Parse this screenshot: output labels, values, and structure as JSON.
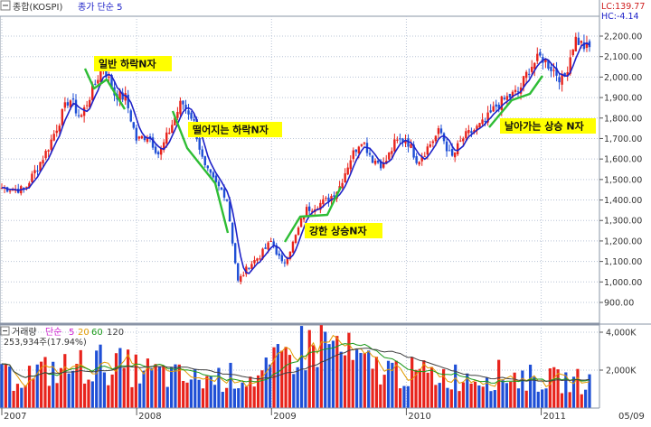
{
  "header": {
    "title": "종합(KOSPI)",
    "indicator": "종가 단순 5",
    "lc": "LC:139.77",
    "hc": "HC:-4.14"
  },
  "volume_header": {
    "title": "거래량",
    "ma_label": "단순",
    "ma_periods": [
      "5",
      "20",
      "60",
      "120"
    ],
    "current": "253,934주(17.94%)"
  },
  "colors": {
    "up": "#e8231c",
    "down": "#1f4fd6",
    "ma_line": "#1e22c8",
    "trend": "#2ebd35",
    "note_bg": "#ffff00",
    "grid": "#b9c4d6",
    "ma5": "#d020d0",
    "ma20": "#e29b00",
    "ma60": "#1a9a1a",
    "ma120": "#404040"
  },
  "annotations": [
    {
      "text": "일반 하락N자"
    },
    {
      "text": "떨어지는 하락N자"
    },
    {
      "text": "강한 상승N자"
    },
    {
      "text": "날아가는 상승 N자"
    }
  ],
  "chart_data": [
    {
      "type": "candlestick",
      "series": [
        {
          "name": "종가 단순 5"
        }
      ],
      "y_ticks": [
        "900.00",
        "1,000.00",
        "1,100.00",
        "1,200.00",
        "1,300.00",
        "1,400.00",
        "1,500.00",
        "1,600.00",
        "1,700.00",
        "1,800.00",
        "1,900.00",
        "2,000.00",
        "2,100.00",
        "2,200.00"
      ],
      "ylim": [
        860,
        2260
      ],
      "x_ticks": [
        "2007",
        "2008",
        "2009",
        "2010",
        "2011",
        "05/09"
      ],
      "grid": true,
      "close_path": [
        [
          "2007-01",
          1460
        ],
        [
          "2007-03",
          1450
        ],
        [
          "2007-05",
          1640
        ],
        [
          "2007-07",
          1900
        ],
        [
          "2007-08",
          1800
        ],
        [
          "2007-10",
          2060
        ],
        [
          "2007-11",
          1920
        ],
        [
          "2007-12",
          1900
        ],
        [
          "2008-01",
          1690
        ],
        [
          "2008-02",
          1720
        ],
        [
          "2008-03",
          1620
        ],
        [
          "2008-05",
          1880
        ],
        [
          "2008-06",
          1800
        ],
        [
          "2008-07",
          1560
        ],
        [
          "2008-08",
          1480
        ],
        [
          "2008-09",
          1420
        ],
        [
          "2008-10",
          1000
        ],
        [
          "2008-11",
          1080
        ],
        [
          "2008-12",
          1130
        ],
        [
          "2009-01",
          1200
        ],
        [
          "2009-02",
          1080
        ],
        [
          "2009-03",
          1200
        ],
        [
          "2009-04",
          1350
        ],
        [
          "2009-06",
          1400
        ],
        [
          "2009-07",
          1460
        ],
        [
          "2009-08",
          1600
        ],
        [
          "2009-09",
          1700
        ],
        [
          "2009-10",
          1600
        ],
        [
          "2009-11",
          1570
        ],
        [
          "2009-12",
          1680
        ],
        [
          "2010-01",
          1700
        ],
        [
          "2010-02",
          1590
        ],
        [
          "2010-04",
          1740
        ],
        [
          "2010-05",
          1600
        ],
        [
          "2010-06",
          1700
        ],
        [
          "2010-08",
          1780
        ],
        [
          "2010-09",
          1860
        ],
        [
          "2010-10",
          1900
        ],
        [
          "2010-11",
          1930
        ],
        [
          "2010-12",
          2050
        ],
        [
          "2011-01",
          2100
        ],
        [
          "2011-03",
          1980
        ],
        [
          "2011-04",
          2190
        ],
        [
          "2011-05",
          2140
        ]
      ]
    },
    {
      "type": "bar",
      "title": "거래량",
      "y_ticks": [
        "4,000K",
        "2,000K"
      ],
      "ylim": [
        0,
        5000
      ],
      "unit": "K",
      "volume_path": [
        [
          "2007-01",
          1800
        ],
        [
          "2007-06",
          2300
        ],
        [
          "2007-10",
          2700
        ],
        [
          "2008-01",
          2300
        ],
        [
          "2008-06",
          1700
        ],
        [
          "2008-10",
          1900
        ],
        [
          "2008-12",
          1800
        ],
        [
          "2009-03",
          3500
        ],
        [
          "2009-06",
          4000
        ],
        [
          "2009-09",
          2600
        ],
        [
          "2010-01",
          2100
        ],
        [
          "2010-06",
          1900
        ],
        [
          "2010-10",
          2000
        ],
        [
          "2011-01",
          1700
        ],
        [
          "2011-05",
          1600
        ]
      ]
    }
  ]
}
